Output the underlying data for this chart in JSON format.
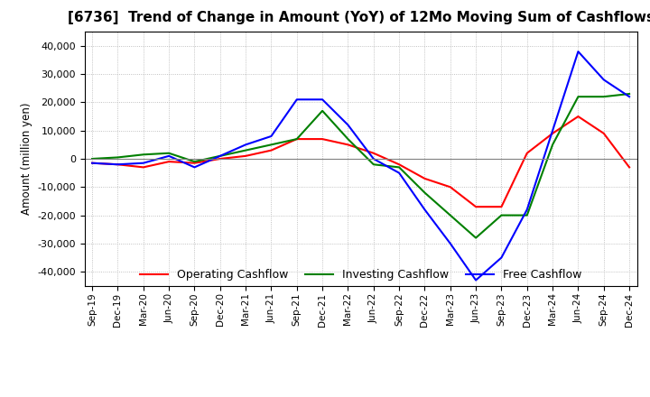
{
  "title": "[6736]  Trend of Change in Amount (YoY) of 12Mo Moving Sum of Cashflows",
  "ylabel": "Amount (million yen)",
  "x_labels": [
    "Sep-19",
    "Dec-19",
    "Mar-20",
    "Jun-20",
    "Sep-20",
    "Dec-20",
    "Mar-21",
    "Jun-21",
    "Sep-21",
    "Dec-21",
    "Mar-22",
    "Jun-22",
    "Sep-22",
    "Dec-22",
    "Mar-23",
    "Jun-23",
    "Sep-23",
    "Dec-23",
    "Mar-24",
    "Jun-24",
    "Sep-24",
    "Dec-24"
  ],
  "operating": [
    -1500,
    -2000,
    -3000,
    -1000,
    -1500,
    0,
    1000,
    3000,
    7000,
    7000,
    5000,
    2000,
    -2000,
    -7000,
    -10000,
    -17000,
    -17000,
    2000,
    9000,
    15000,
    9000,
    -3000
  ],
  "investing": [
    0,
    500,
    1500,
    2000,
    -1000,
    1000,
    3000,
    5000,
    7000,
    17000,
    7000,
    -2000,
    -3000,
    -12000,
    -20000,
    -28000,
    -20000,
    -20000,
    5000,
    22000,
    22000,
    23000
  ],
  "free": [
    -1500,
    -2000,
    -1500,
    1000,
    -3000,
    1000,
    5000,
    8000,
    21000,
    21000,
    12000,
    0,
    -5000,
    -18000,
    -30000,
    -43000,
    -35000,
    -18000,
    10000,
    38000,
    28000,
    22000
  ],
  "ylim": [
    -45000,
    45000
  ],
  "yticks": [
    -40000,
    -30000,
    -20000,
    -10000,
    0,
    10000,
    20000,
    30000,
    40000
  ],
  "operating_color": "#ff0000",
  "investing_color": "#008000",
  "free_color": "#0000ff",
  "background_color": "#ffffff",
  "grid_color": "#b0b0b0",
  "title_fontsize": 11,
  "legend_labels": [
    "Operating Cashflow",
    "Investing Cashflow",
    "Free Cashflow"
  ]
}
